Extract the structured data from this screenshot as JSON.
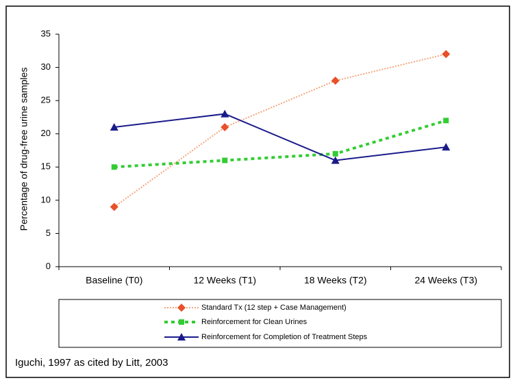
{
  "chart_data": {
    "type": "line",
    "y_label": "Percentage of drug-free urine samples",
    "categories": [
      "Baseline (T0)",
      "12 Weeks (T1)",
      "18 Weeks (T2)",
      "24 Weeks (T3)"
    ],
    "series": [
      {
        "name": "Standard Tx (12 step + Case Management)",
        "color": "#e8502a",
        "line_color": "#f4a57c",
        "dash": "dotted",
        "marker": "diamond",
        "values": [
          9,
          21,
          28,
          32
        ]
      },
      {
        "name": "Reinforcement for Clean Urines",
        "color": "#33cc33",
        "line_color": "#33cc33",
        "dash": "dashed",
        "marker": "square",
        "values": [
          15,
          16,
          17,
          22
        ]
      },
      {
        "name": "Reinforcement for Completion of Treatment Steps",
        "color": "#1a1a8c",
        "line_color": "#1a1a8c",
        "dash": "solid",
        "marker": "triangle",
        "values": [
          21,
          23,
          16,
          18
        ]
      }
    ],
    "ylim": [
      0,
      35
    ],
    "yticks": [
      0,
      5,
      10,
      15,
      20,
      25,
      30,
      35
    ],
    "grid": false,
    "legend": "bottom",
    "note": "Iguchi, 1997 as cited by Litt, 2003"
  }
}
